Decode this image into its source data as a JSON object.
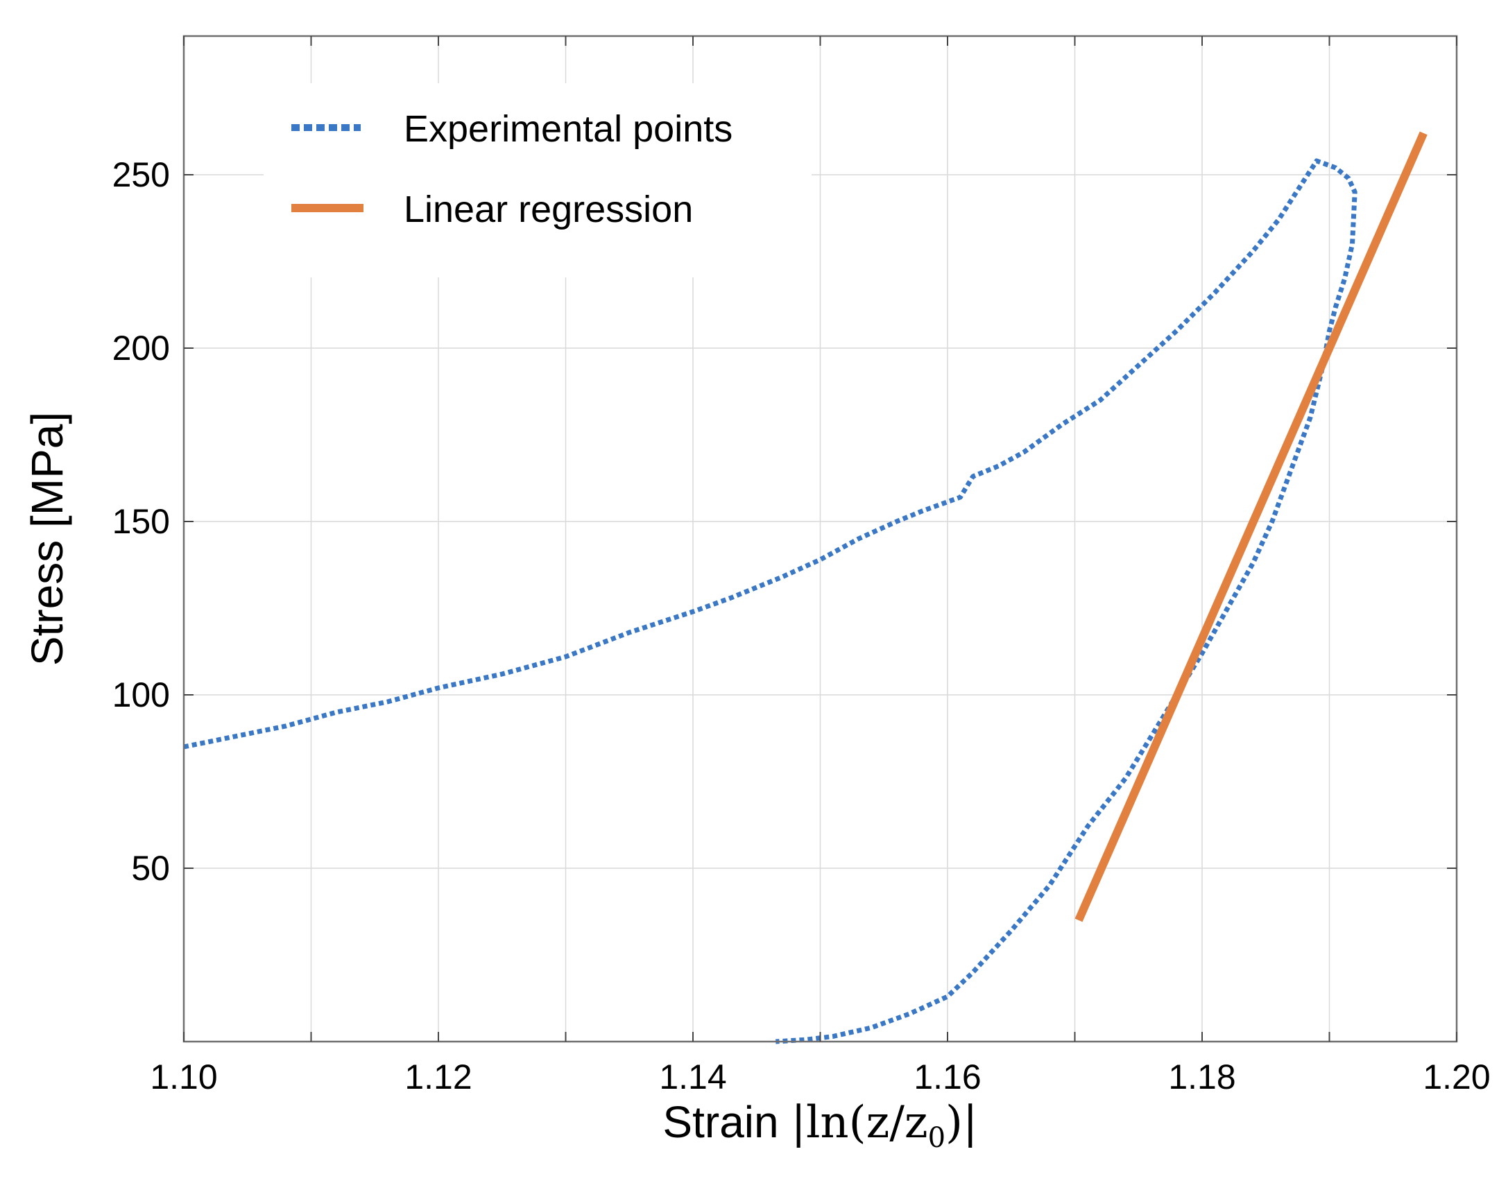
{
  "chart_data": {
    "type": "line",
    "xlabel": "Strain |ln(z/z0)|",
    "xlabel_prefix": "Strain ",
    "xlabel_math": "|ln(z/z",
    "xlabel_sub": "0",
    "xlabel_suffix": ")|",
    "ylabel": "Stress [MPa]",
    "xlim": [
      1.1,
      1.2
    ],
    "ylim": [
      0,
      290
    ],
    "xticks": [
      1.1,
      1.12,
      1.14,
      1.16,
      1.18,
      1.2
    ],
    "xtick_labels": [
      "1.10",
      "1.12",
      "1.14",
      "1.16",
      "1.18",
      "1.20"
    ],
    "yticks": [
      50,
      100,
      150,
      200,
      250
    ],
    "ytick_labels": [
      "50",
      "100",
      "150",
      "200",
      "250"
    ],
    "grid": true,
    "legend_position": "top-left",
    "colors": {
      "experimental": "#3a78c5",
      "regression": "#e2813f"
    },
    "series": [
      {
        "name": "Experimental points",
        "style": "dotted",
        "x": [
          1.1,
          1.104,
          1.108,
          1.112,
          1.116,
          1.12,
          1.125,
          1.13,
          1.135,
          1.14,
          1.143,
          1.147,
          1.15,
          1.153,
          1.156,
          1.158,
          1.161,
          1.162,
          1.164,
          1.166,
          1.169,
          1.172,
          1.175,
          1.178,
          1.181,
          1.184,
          1.186,
          1.189,
          1.1905,
          1.1915,
          1.192,
          1.1918,
          1.1912,
          1.1905,
          1.19,
          1.1895,
          1.1885,
          1.187,
          1.1855,
          1.184,
          1.182,
          1.18,
          1.178,
          1.176,
          1.174,
          1.171,
          1.168,
          1.165,
          1.162,
          1.16,
          1.157,
          1.154,
          1.151,
          1.149,
          1.1465
        ],
        "y": [
          85,
          88,
          91,
          95,
          98,
          102,
          106,
          111,
          118,
          124,
          128,
          134,
          139,
          145,
          150,
          153,
          157,
          163,
          166,
          170,
          178,
          185,
          195,
          205,
          216,
          228,
          237,
          254,
          252,
          249,
          245,
          230,
          220,
          212,
          205,
          195,
          180,
          165,
          150,
          138,
          125,
          112,
          100,
          88,
          76,
          62,
          45,
          32,
          20,
          13,
          8,
          4,
          1.5,
          0.6,
          0
        ]
      },
      {
        "name": "Linear regression",
        "style": "solid",
        "x": [
          1.1703,
          1.1974
        ],
        "y": [
          35,
          262
        ]
      }
    ]
  }
}
